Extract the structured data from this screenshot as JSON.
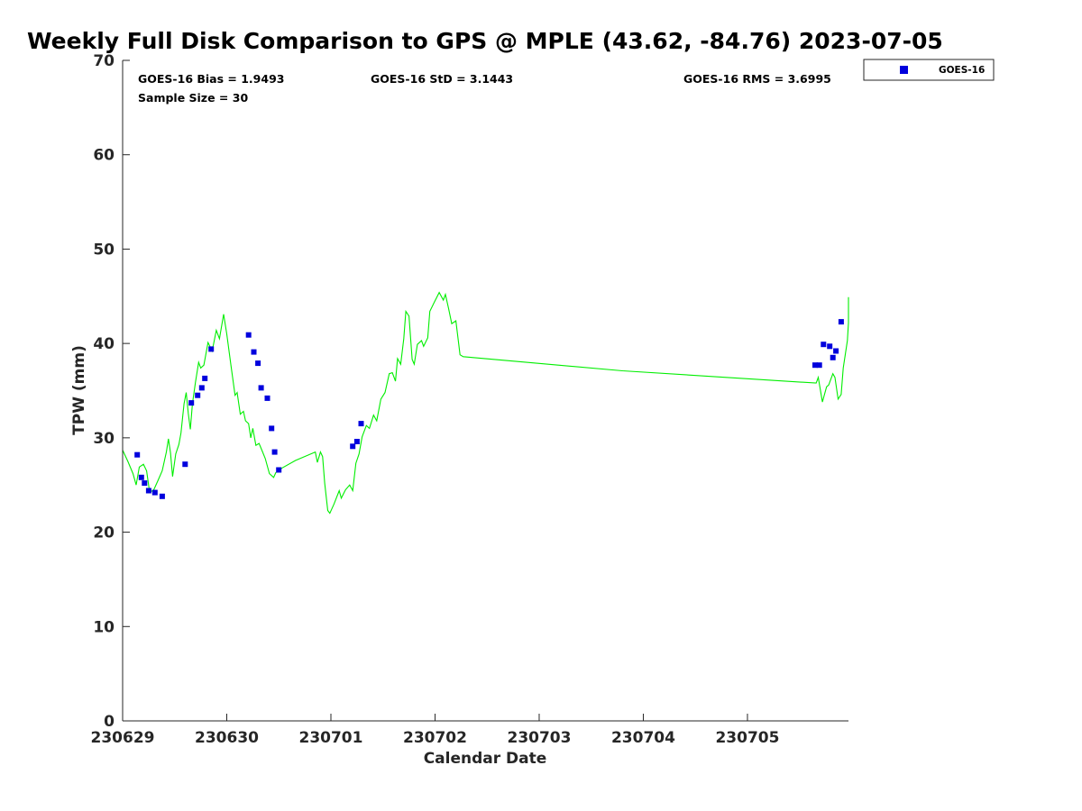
{
  "chart_data": {
    "type": "scatter",
    "title": "Weekly Full Disk Comparison to GPS @ MPLE (43.62, -84.76) 2023-07-05",
    "xlabel": "Calendar Date",
    "ylabel": "TPW (mm)",
    "xlim": [
      0,
      6.97
    ],
    "ylim": [
      0,
      70
    ],
    "x_tick_labels": [
      "230629",
      "230630",
      "230701",
      "230702",
      "230703",
      "230704",
      "230705"
    ],
    "y_tick_labels": [
      "0",
      "10",
      "20",
      "30",
      "40",
      "50",
      "60",
      "70"
    ],
    "grid": false,
    "legend_position": "top-right",
    "stats": {
      "bias": "GOES-16 Bias = 1.9493",
      "std": "GOES-16 StD = 3.1443",
      "rms": "GOES-16 RMS = 3.6995",
      "sample": "Sample Size = 30"
    },
    "series": [
      {
        "name": "GOES-16",
        "kind": "marker",
        "color": "#0000dd",
        "points": [
          [
            0.14,
            28.2
          ],
          [
            0.18,
            25.8
          ],
          [
            0.21,
            25.2
          ],
          [
            0.25,
            24.4
          ],
          [
            0.31,
            24.2
          ],
          [
            0.38,
            23.8
          ],
          [
            0.6,
            27.2
          ],
          [
            0.66,
            33.7
          ],
          [
            0.72,
            34.5
          ],
          [
            0.76,
            35.3
          ],
          [
            0.79,
            36.3
          ],
          [
            0.85,
            39.4
          ],
          [
            1.21,
            40.9
          ],
          [
            1.26,
            39.1
          ],
          [
            1.3,
            37.9
          ],
          [
            1.33,
            35.3
          ],
          [
            1.39,
            34.2
          ],
          [
            1.43,
            31.0
          ],
          [
            1.46,
            28.5
          ],
          [
            1.5,
            26.6
          ],
          [
            2.21,
            29.1
          ],
          [
            2.25,
            29.6
          ],
          [
            2.29,
            31.5
          ],
          [
            6.65,
            37.7
          ],
          [
            6.69,
            37.7
          ],
          [
            6.73,
            39.9
          ],
          [
            6.79,
            39.7
          ],
          [
            6.82,
            38.5
          ],
          [
            6.85,
            39.2
          ],
          [
            6.9,
            42.3
          ]
        ]
      },
      {
        "kind": "line",
        "color": "#00ee00",
        "points": [
          [
            0.0,
            28.7
          ],
          [
            0.05,
            27.5
          ],
          [
            0.1,
            26.2
          ],
          [
            0.13,
            25.0
          ],
          [
            0.16,
            26.9
          ],
          [
            0.2,
            27.2
          ],
          [
            0.23,
            26.5
          ],
          [
            0.26,
            24.2
          ],
          [
            0.3,
            24.5
          ],
          [
            0.34,
            25.5
          ],
          [
            0.38,
            26.5
          ],
          [
            0.42,
            28.5
          ],
          [
            0.44,
            29.9
          ],
          [
            0.46,
            28.4
          ],
          [
            0.48,
            25.9
          ],
          [
            0.51,
            28.3
          ],
          [
            0.54,
            29.3
          ],
          [
            0.56,
            30.5
          ],
          [
            0.59,
            33.6
          ],
          [
            0.61,
            34.8
          ],
          [
            0.63,
            32.6
          ],
          [
            0.65,
            30.9
          ],
          [
            0.67,
            33.6
          ],
          [
            0.7,
            35.9
          ],
          [
            0.73,
            38.0
          ],
          [
            0.75,
            37.4
          ],
          [
            0.78,
            37.7
          ],
          [
            0.82,
            40.1
          ],
          [
            0.86,
            39.2
          ],
          [
            0.9,
            41.4
          ],
          [
            0.93,
            40.5
          ],
          [
            0.97,
            43.1
          ],
          [
            1.0,
            41.0
          ],
          [
            1.04,
            37.7
          ],
          [
            1.08,
            34.5
          ],
          [
            1.1,
            34.8
          ],
          [
            1.13,
            32.5
          ],
          [
            1.16,
            32.8
          ],
          [
            1.18,
            31.8
          ],
          [
            1.21,
            31.5
          ],
          [
            1.23,
            30.0
          ],
          [
            1.25,
            31.0
          ],
          [
            1.28,
            29.2
          ],
          [
            1.31,
            29.4
          ],
          [
            1.34,
            28.6
          ],
          [
            1.37,
            27.8
          ],
          [
            1.41,
            26.2
          ],
          [
            1.45,
            25.8
          ],
          [
            1.47,
            26.3
          ],
          [
            1.53,
            26.8
          ],
          [
            1.66,
            27.6
          ],
          [
            1.85,
            28.5
          ],
          [
            1.87,
            27.4
          ],
          [
            1.9,
            28.5
          ],
          [
            1.92,
            28.0
          ],
          [
            1.94,
            25.2
          ],
          [
            1.97,
            22.3
          ],
          [
            1.99,
            22.0
          ],
          [
            2.03,
            23.0
          ],
          [
            2.08,
            24.4
          ],
          [
            2.1,
            23.6
          ],
          [
            2.14,
            24.5
          ],
          [
            2.18,
            25.0
          ],
          [
            2.21,
            24.4
          ],
          [
            2.24,
            27.3
          ],
          [
            2.27,
            28.3
          ],
          [
            2.3,
            30.1
          ],
          [
            2.34,
            31.3
          ],
          [
            2.37,
            31.0
          ],
          [
            2.41,
            32.4
          ],
          [
            2.44,
            31.8
          ],
          [
            2.48,
            34.1
          ],
          [
            2.52,
            34.8
          ],
          [
            2.56,
            36.8
          ],
          [
            2.59,
            36.9
          ],
          [
            2.62,
            36.0
          ],
          [
            2.64,
            38.4
          ],
          [
            2.67,
            37.8
          ],
          [
            2.7,
            40.5
          ],
          [
            2.72,
            43.4
          ],
          [
            2.75,
            42.9
          ],
          [
            2.78,
            38.3
          ],
          [
            2.8,
            37.8
          ],
          [
            2.83,
            39.9
          ],
          [
            2.87,
            40.3
          ],
          [
            2.89,
            39.7
          ],
          [
            2.93,
            40.6
          ],
          [
            2.95,
            43.4
          ],
          [
            2.99,
            44.3
          ],
          [
            3.04,
            45.4
          ],
          [
            3.08,
            44.6
          ],
          [
            3.1,
            45.2
          ],
          [
            3.13,
            43.7
          ],
          [
            3.16,
            42.1
          ],
          [
            3.2,
            42.4
          ],
          [
            3.24,
            38.8
          ],
          [
            3.27,
            38.6
          ],
          [
            4.8,
            37.1
          ],
          [
            6.66,
            35.8
          ],
          [
            6.68,
            36.4
          ],
          [
            6.72,
            33.8
          ],
          [
            6.76,
            35.4
          ],
          [
            6.78,
            35.6
          ],
          [
            6.82,
            36.8
          ],
          [
            6.84,
            36.4
          ],
          [
            6.87,
            34.1
          ],
          [
            6.9,
            34.6
          ],
          [
            6.92,
            37.4
          ],
          [
            6.96,
            40.3
          ],
          [
            6.98,
            42.2
          ],
          [
            7.01,
            44.9
          ]
        ]
      }
    ]
  }
}
